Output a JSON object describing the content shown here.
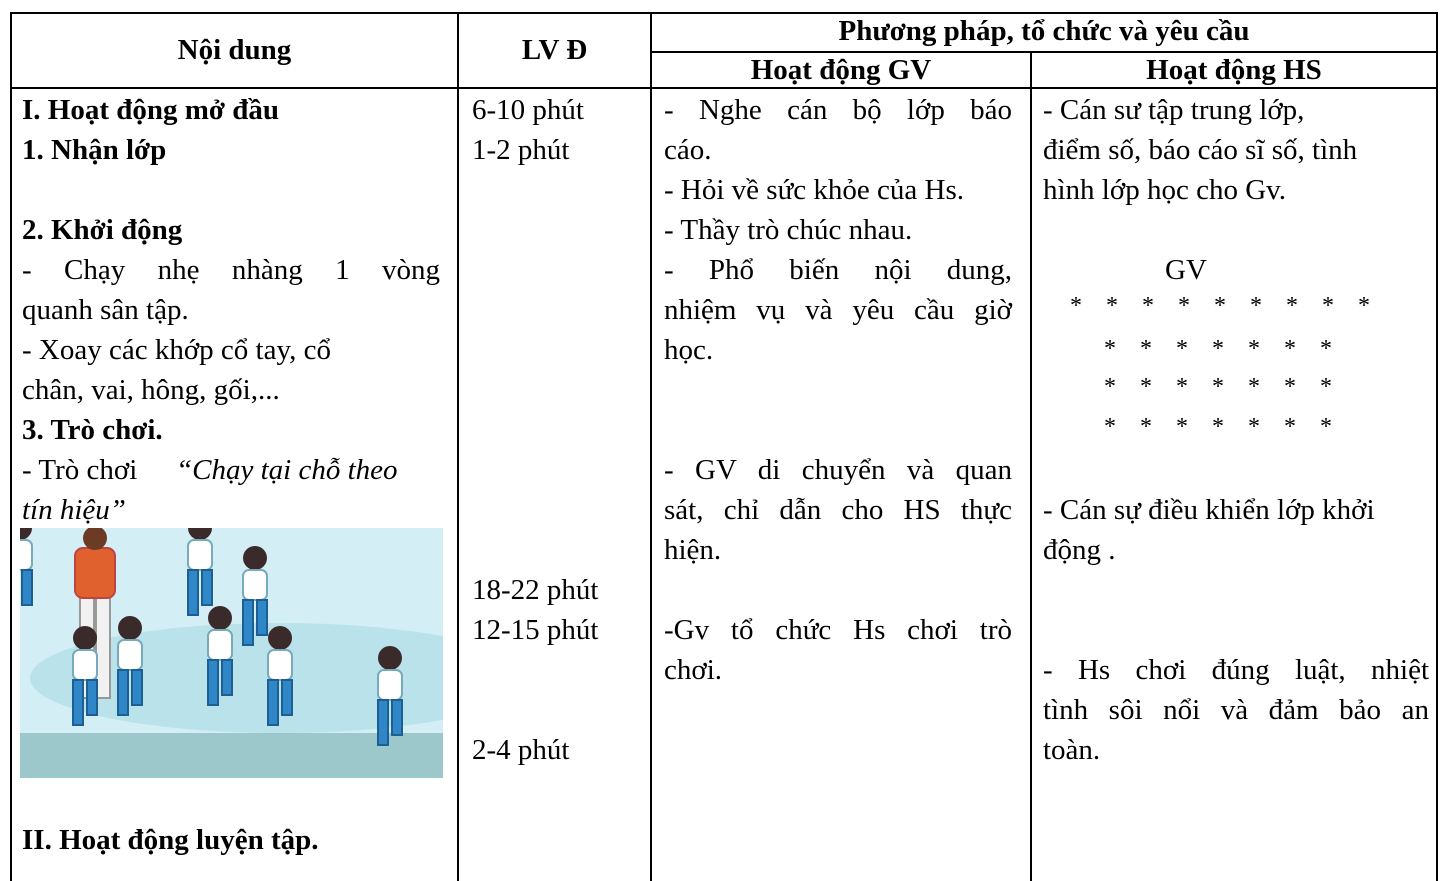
{
  "header": {
    "content": "Nội dung",
    "time": "LV Đ",
    "methods": "Phương pháp, tổ chức và yêu cầu",
    "teacher": "Hoạt động GV",
    "students": "Hoạt động HS"
  },
  "content": [
    "I. Hoạt động mở đầu",
    "1. Nhận lớp",
    "2. Khởi động",
    "- Chạy nhẹ nhàng 1 vòng",
    "quanh sân tập.",
    "- Xoay các khớp cổ tay, cổ",
    "chân, vai, hông, gối,...",
    "3. Trò chơi.",
    "- Trò chơi",
    "“Chạy tại chỗ theo",
    "tín hiệu”",
    "II. Hoạt động luyện tập."
  ],
  "time": [
    "6-10 phút",
    "1-2 phút",
    "18-22 phút",
    "12-15 phút",
    "2-4 phút"
  ],
  "teacher": [
    "- Nghe cán bộ lớp báo",
    "cáo.",
    "- Hỏi về sức khỏe của Hs.",
    "- Thầy trò chúc nhau.",
    "- Phổ biến nội dung,",
    "nhiệm vụ và yêu cầu giờ",
    "học.",
    "- GV di chuyển và quan",
    "sát, chỉ dẫn cho HS thực",
    "hiện.",
    "-Gv tổ chức Hs chơi trò",
    "chơi."
  ],
  "students": [
    "- Cán sư tập trung lớp,",
    "điểm số, báo cáo sĩ số, tình",
    "hình lớp học cho Gv.",
    "GV",
    "* * * * * * * * *",
    "* * * * * * *",
    "* * * * * * *",
    "* * * * * * *",
    "- Cán sự điều khiển lớp khởi",
    "động .",
    "- Hs chơi đúng luật, nhiệt",
    "tình sôi nổi và đảm bảo an",
    "toàn."
  ]
}
